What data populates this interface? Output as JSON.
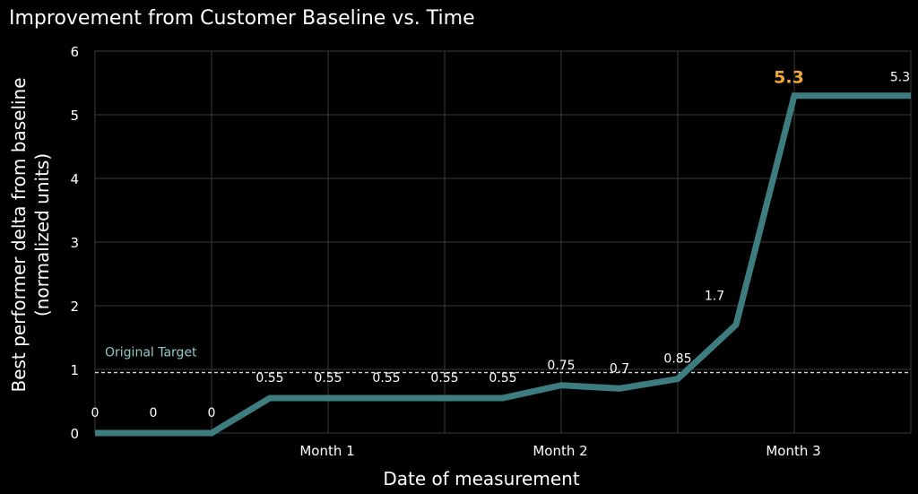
{
  "chart_data": {
    "type": "line",
    "title": "Improvement from Customer Baseline vs. Time",
    "xlabel": "Date of measurement",
    "ylabel": [
      "Best performer delta from baseline",
      "(normalized units)"
    ],
    "ylim": [
      0,
      6
    ],
    "yticks": [
      "0",
      "1",
      "2",
      "3",
      "4",
      "5",
      "6"
    ],
    "xtick_labels": [
      "Month 1",
      "Month 2",
      "Month 3"
    ],
    "grid": true,
    "series": [
      {
        "color": "#3d7d80",
        "x": [
          0,
          1,
          2,
          3,
          4,
          5,
          6,
          7,
          8,
          9,
          10,
          11,
          12,
          13,
          14
        ],
        "values": [
          0,
          0,
          0,
          0.55,
          0.55,
          0.55,
          0.55,
          0.55,
          0.75,
          0.7,
          0.85,
          1.7,
          5.3,
          5.3,
          5.3
        ],
        "labels": [
          "0",
          "0",
          "0",
          "0.55",
          "0.55",
          "0.55",
          "0.55",
          "0.55",
          "0.75",
          "0.7",
          "0.85",
          "1.7",
          "5.3",
          "",
          "5.3"
        ]
      }
    ],
    "highlight": {
      "label": "5.3",
      "color": "#f2a93b"
    },
    "reference_line": {
      "label": "Original Target",
      "value": 0.95,
      "color": "#8fc9c4"
    }
  }
}
